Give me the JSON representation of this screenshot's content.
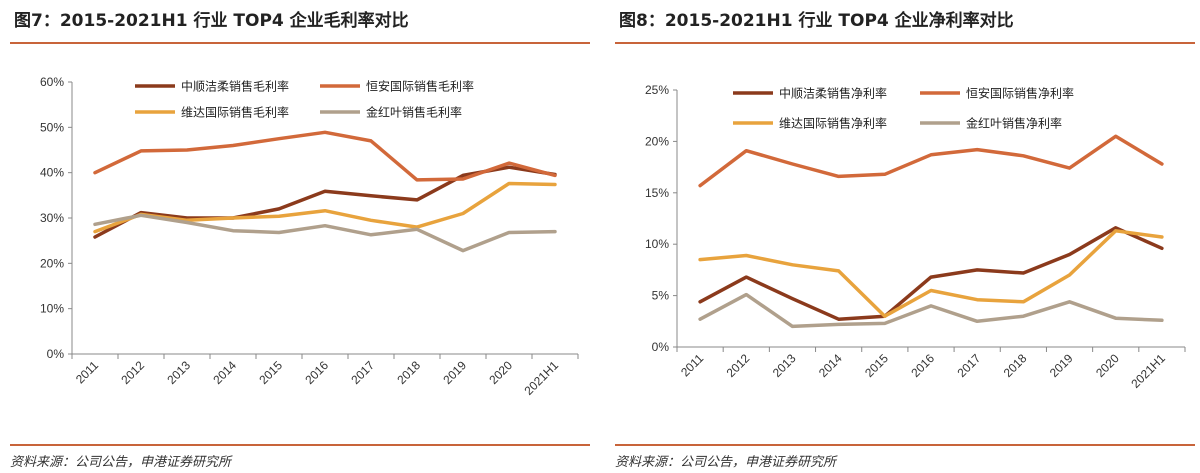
{
  "sources": "资料来源：公司公告，申港证券研究所",
  "chart_data": [
    {
      "type": "line",
      "title": "图7：2015-2021H1 行业 TOP4 企业毛利率对比",
      "categories": [
        "2011",
        "2012",
        "2013",
        "2014",
        "2015",
        "2016",
        "2017",
        "2018",
        "2019",
        "2020",
        "2021H1"
      ],
      "yticks": [
        "0%",
        "10%",
        "20%",
        "30%",
        "40%",
        "50%",
        "60%"
      ],
      "ylim": [
        0,
        60
      ],
      "grid": false,
      "legend": "top",
      "series": [
        {
          "name": "中顺洁柔销售毛利率",
          "color": "#8b3a1c",
          "values": [
            25.8,
            31.2,
            30.0,
            30.0,
            32.0,
            35.9,
            34.9,
            34.0,
            39.4,
            41.2,
            39.6
          ]
        },
        {
          "name": "恒安国际销售毛利率",
          "color": "#d2693a",
          "values": [
            40.0,
            44.8,
            45.0,
            46.0,
            47.5,
            48.9,
            47.0,
            38.4,
            38.6,
            42.1,
            39.4
          ]
        },
        {
          "name": "维达国际销售毛利率",
          "color": "#e8a33d",
          "values": [
            27.0,
            30.8,
            29.5,
            30.0,
            30.4,
            31.6,
            29.5,
            28.0,
            31.0,
            37.6,
            37.4
          ]
        },
        {
          "name": "金红叶销售毛利率",
          "color": "#b0a08c",
          "values": [
            28.6,
            30.6,
            29.0,
            27.2,
            26.8,
            28.3,
            26.3,
            27.5,
            22.8,
            26.8,
            27.0
          ]
        }
      ]
    },
    {
      "type": "line",
      "title": "图8：2015-2021H1 行业 TOP4 企业净利率对比",
      "categories": [
        "2011",
        "2012",
        "2013",
        "2014",
        "2015",
        "2016",
        "2017",
        "2018",
        "2019",
        "2020",
        "2021H1"
      ],
      "yticks": [
        "0%",
        "5%",
        "10%",
        "15%",
        "20%",
        "25%"
      ],
      "ylim": [
        0,
        25
      ],
      "grid": false,
      "legend": "top",
      "series": [
        {
          "name": "中顺洁柔销售净利率",
          "color": "#8b3a1c",
          "values": [
            4.4,
            6.8,
            4.7,
            2.7,
            3.0,
            6.8,
            7.5,
            7.2,
            9.0,
            11.6,
            9.6
          ]
        },
        {
          "name": "恒安国际销售净利率",
          "color": "#d2693a",
          "values": [
            15.7,
            19.1,
            17.8,
            16.6,
            16.8,
            18.7,
            19.2,
            18.6,
            17.4,
            20.5,
            17.8
          ]
        },
        {
          "name": "维达国际销售净利率",
          "color": "#e8a33d",
          "values": [
            8.5,
            8.9,
            8.0,
            7.4,
            3.0,
            5.5,
            4.6,
            4.4,
            7.0,
            11.3,
            10.7
          ]
        },
        {
          "name": "金红叶销售净利率",
          "color": "#b0a08c",
          "values": [
            2.7,
            5.1,
            2.0,
            2.2,
            2.3,
            4.0,
            2.5,
            3.0,
            4.4,
            2.8,
            2.6
          ]
        }
      ]
    }
  ]
}
